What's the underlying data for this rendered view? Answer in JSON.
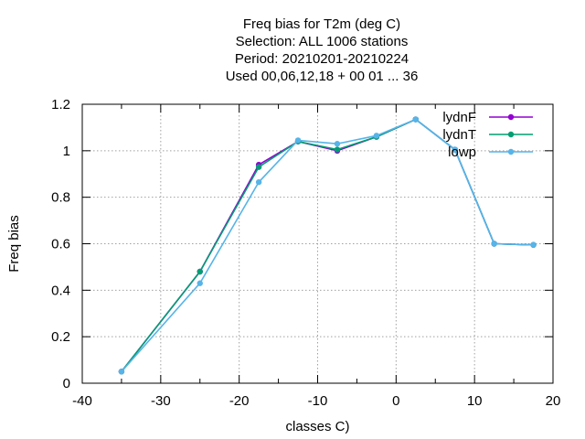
{
  "chart_data": {
    "type": "line",
    "title_lines": [
      "Freq bias  for T2m (deg C)",
      "Selection: ALL   1006 stations",
      "Period: 20210201-20210224",
      "Used  00,06,12,18 + 00 01 ... 36"
    ],
    "xlabel": "classes C)",
    "ylabel": "Freq bias",
    "xlim": [
      -40,
      20
    ],
    "ylim": [
      0,
      1.2
    ],
    "xticks": [
      -40,
      -30,
      -20,
      -10,
      0,
      10,
      20
    ],
    "yticks": [
      0,
      0.2,
      0.4,
      0.6,
      0.8,
      1,
      1.2
    ],
    "ytick_labels": [
      "0",
      "0.2",
      "0.4",
      "0.6",
      "0.8",
      "1",
      "1.2"
    ],
    "grid": true,
    "legend_position": "top-right",
    "x": [
      -35,
      -25,
      -17.5,
      -12.5,
      -7.5,
      -2.5,
      2.5,
      7.5,
      12.5,
      17.5
    ],
    "series": [
      {
        "name": "lydnF",
        "color": "#9400d3",
        "values": [
          0.05,
          0.48,
          0.94,
          1.04,
          1.0,
          1.06,
          1.135,
          1.005,
          0.6,
          0.595
        ]
      },
      {
        "name": "lydnT",
        "color": "#009e73",
        "values": [
          0.05,
          0.48,
          0.93,
          1.04,
          1.005,
          1.06,
          1.135,
          1.005,
          0.6,
          0.595
        ]
      },
      {
        "name": "lowp",
        "color": "#56b4e9",
        "values": [
          0.05,
          0.43,
          0.865,
          1.045,
          1.03,
          1.065,
          1.135,
          1.005,
          0.6,
          0.595
        ]
      }
    ]
  }
}
